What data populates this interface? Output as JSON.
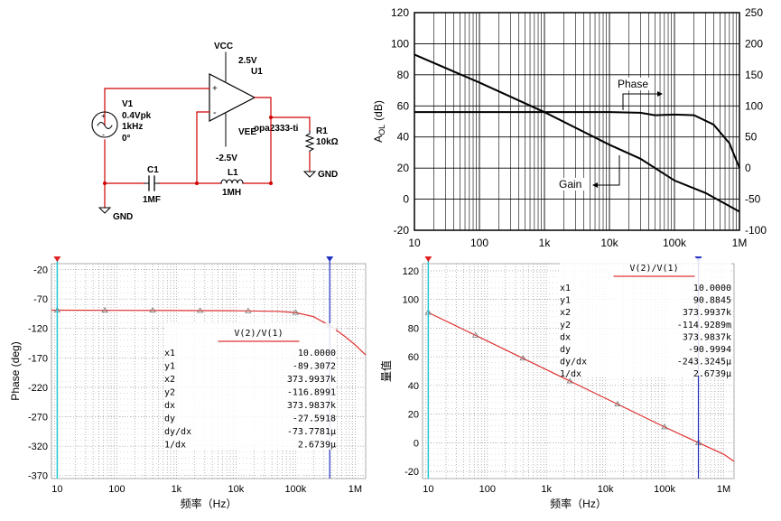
{
  "schematic": {
    "vcc_label": "VCC",
    "vcc_value": "2.5V",
    "u1_label": "U1",
    "vee_label": "VEE",
    "vee_value": "-2.5V",
    "opamp_name": "opa2333-ti",
    "v1_name": "V1",
    "v1_amp": "0.4Vpk",
    "v1_freq": "1kHz",
    "v1_phase": "0°",
    "c1_name": "C1",
    "c1_value": "1MF",
    "l1_name": "L1",
    "l1_value": "1MH",
    "r1_name": "R1",
    "r1_value": "10kΩ",
    "gnd1": "GND",
    "gnd2": "GND",
    "plus": "+",
    "minus": "-"
  },
  "chart_data": [
    {
      "type": "line",
      "title": "",
      "ylabel": "A_OL (dB)",
      "ylabel_main": "A",
      "ylabel_sub": "OL",
      "ylabel_unit": "(dB)",
      "xscale": "log",
      "xlim": [
        10,
        1000000
      ],
      "ylim": [
        -20,
        120
      ],
      "y2lim": [
        -100,
        250
      ],
      "xticks": [
        "10",
        "100",
        "1k",
        "10k",
        "100k",
        "1M"
      ],
      "yticks": [
        "-20",
        "0",
        "20",
        "40",
        "60",
        "80",
        "100",
        "120"
      ],
      "y2ticks": [
        "-100",
        "-50",
        "0",
        "50",
        "100",
        "150",
        "200",
        "250"
      ],
      "grid": true,
      "series": [
        {
          "name": "Gain",
          "axis": "left",
          "x": [
            10,
            100,
            1000,
            10000,
            30000,
            100000,
            300000,
            1000000
          ],
          "y": [
            93,
            75,
            56,
            35,
            26,
            12,
            4,
            -8
          ]
        },
        {
          "name": "Phase",
          "axis": "right",
          "x": [
            10,
            100,
            1000,
            10000,
            30000,
            50000,
            100000,
            200000,
            400000,
            700000,
            1000000
          ],
          "y": [
            90,
            90,
            90,
            90,
            89,
            85,
            86,
            85,
            70,
            40,
            0
          ]
        }
      ]
    },
    {
      "type": "line",
      "xlabel": "频率（Hz）",
      "ylabel": "Phase (deg)",
      "xscale": "log",
      "xlim": [
        8,
        1500000
      ],
      "ylim": [
        -375,
        -10
      ],
      "xticks": [
        "10",
        "100",
        "1k",
        "10k",
        "100k",
        "1M"
      ],
      "yticks": [
        "-20",
        "-70",
        "-120",
        "-170",
        "-220",
        "-270",
        "-320",
        "-370"
      ],
      "grid": true,
      "series": [
        {
          "name": "",
          "x": [
            8,
            100,
            1000,
            10000,
            50000,
            100000,
            200000,
            400000,
            700000,
            1000000,
            1500000
          ],
          "y": [
            -89,
            -89.3,
            -89.5,
            -90,
            -91,
            -93,
            -100,
            -117,
            -135,
            -148,
            -165
          ]
        }
      ],
      "markers_x": [
        10,
        63,
        400,
        2500,
        16000,
        100000,
        370000
      ],
      "cursors": {
        "x1": 10,
        "x2": 373993.7
      },
      "readout": {
        "title": "V(2)/V(1)",
        "rows": [
          [
            "x1",
            "10.0000"
          ],
          [
            "y1",
            "-89.3072"
          ],
          [
            "x2",
            "373.9937k"
          ],
          [
            "y2",
            "-116.8991"
          ],
          [
            "dx",
            "373.9837k"
          ],
          [
            "dy",
            "-27.5918"
          ],
          [
            "dy/dx",
            "-73.7781µ"
          ],
          [
            "1/dx",
            "2.6739µ"
          ]
        ]
      }
    },
    {
      "type": "line",
      "xlabel": "频率（Hz）",
      "ylabel": "量值",
      "xscale": "log",
      "xlim": [
        8,
        1500000
      ],
      "ylim": [
        -25,
        125
      ],
      "xticks": [
        "10",
        "100",
        "1k",
        "10k",
        "100k",
        "1M"
      ],
      "yticks": [
        "120",
        "100",
        "80",
        "60",
        "40",
        "20",
        "0",
        "-20"
      ],
      "grid": true,
      "series": [
        {
          "name": "",
          "x": [
            10,
            100,
            1000,
            10000,
            100000,
            374000,
            1000000,
            1500000
          ],
          "y": [
            90.88,
            71,
            51,
            31,
            11,
            0,
            -8,
            -13
          ]
        }
      ],
      "markers_x": [
        10,
        63,
        400,
        2500,
        16000,
        100000,
        374000
      ],
      "cursors": {
        "x1": 10,
        "x2": 373993.7
      },
      "readout": {
        "title": "V(2)/V(1)",
        "rows": [
          [
            "x1",
            "10.0000"
          ],
          [
            "y1",
            "90.8845"
          ],
          [
            "x2",
            "373.9937k"
          ],
          [
            "y2",
            "-114.9289m"
          ],
          [
            "dx",
            "373.9837k"
          ],
          [
            "dy",
            "-90.9994"
          ],
          [
            "dy/dx",
            "-243.3245µ"
          ],
          [
            "1/dx",
            "2.6739µ"
          ]
        ]
      }
    }
  ]
}
